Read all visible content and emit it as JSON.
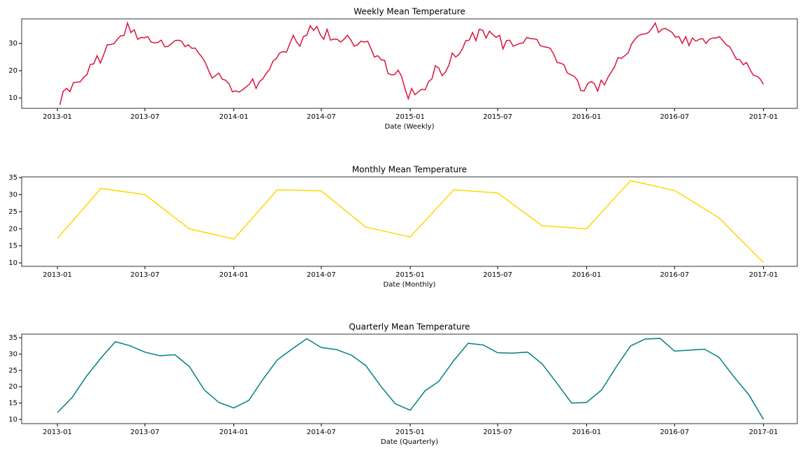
{
  "chart_data": [
    {
      "type": "line",
      "title": "Weekly Mean Temperature",
      "xlabel": "Date (Weekly)",
      "color": "#dc143c",
      "xlim": [
        "2012-10-19",
        "2017-03-12"
      ],
      "ylim": [
        6.2,
        39.0
      ],
      "xticks": [
        "2013-01",
        "2013-07",
        "2014-01",
        "2014-07",
        "2015-01",
        "2015-07",
        "2016-01",
        "2016-07",
        "2017-01"
      ],
      "yticks": [
        10,
        20,
        30
      ],
      "x": [
        "2013-01-06",
        "2013-01-13",
        "2013-01-20",
        "2013-01-27",
        "2013-02-03",
        "2013-02-10",
        "2013-02-17",
        "2013-02-24",
        "2013-03-03",
        "2013-03-10",
        "2013-03-17",
        "2013-03-24",
        "2013-03-31",
        "2013-04-07",
        "2013-04-14",
        "2013-04-21",
        "2013-04-28",
        "2013-05-05",
        "2013-05-12",
        "2013-05-19",
        "2013-05-26",
        "2013-06-02",
        "2013-06-09",
        "2013-06-16",
        "2013-06-23",
        "2013-06-30",
        "2013-07-07",
        "2013-07-14",
        "2013-07-21",
        "2013-07-28",
        "2013-08-04",
        "2013-08-11",
        "2013-08-18",
        "2013-08-25",
        "2013-09-01",
        "2013-09-08",
        "2013-09-15",
        "2013-09-22",
        "2013-09-29",
        "2013-10-06",
        "2013-10-13",
        "2013-10-20",
        "2013-10-27",
        "2013-11-03",
        "2013-11-10",
        "2013-11-17",
        "2013-11-24",
        "2013-12-01",
        "2013-12-08",
        "2013-12-15",
        "2013-12-22",
        "2013-12-29",
        "2014-01-05",
        "2014-01-12",
        "2014-01-19",
        "2014-01-26",
        "2014-02-02",
        "2014-02-09",
        "2014-02-16",
        "2014-02-23",
        "2014-03-02",
        "2014-03-09",
        "2014-03-16",
        "2014-03-23",
        "2014-03-30",
        "2014-04-06",
        "2014-04-13",
        "2014-04-20",
        "2014-04-27",
        "2014-05-04",
        "2014-05-11",
        "2014-05-18",
        "2014-05-25",
        "2014-06-01",
        "2014-06-08",
        "2014-06-15",
        "2014-06-22",
        "2014-06-29",
        "2014-07-06",
        "2014-07-13",
        "2014-07-20",
        "2014-07-27",
        "2014-08-03",
        "2014-08-10",
        "2014-08-17",
        "2014-08-24",
        "2014-08-31",
        "2014-09-07",
        "2014-09-14",
        "2014-09-21",
        "2014-09-28",
        "2014-10-05",
        "2014-10-12",
        "2014-10-19",
        "2014-10-26",
        "2014-11-02",
        "2014-11-09",
        "2014-11-16",
        "2014-11-23",
        "2014-11-30",
        "2014-12-07",
        "2014-12-14",
        "2014-12-21",
        "2014-12-28",
        "2015-01-04",
        "2015-01-11",
        "2015-01-18",
        "2015-01-25",
        "2015-02-01",
        "2015-02-08",
        "2015-02-15",
        "2015-02-22",
        "2015-03-01",
        "2015-03-08",
        "2015-03-15",
        "2015-03-22",
        "2015-03-29",
        "2015-04-05",
        "2015-04-12",
        "2015-04-19",
        "2015-04-26",
        "2015-05-03",
        "2015-05-10",
        "2015-05-17",
        "2015-05-24",
        "2015-05-31",
        "2015-06-07",
        "2015-06-14",
        "2015-06-21",
        "2015-06-28",
        "2015-07-05",
        "2015-07-12",
        "2015-07-19",
        "2015-07-26",
        "2015-08-02",
        "2015-08-09",
        "2015-08-16",
        "2015-08-23",
        "2015-08-30",
        "2015-09-06",
        "2015-09-13",
        "2015-09-20",
        "2015-09-27",
        "2015-10-04",
        "2015-10-11",
        "2015-10-18",
        "2015-10-25",
        "2015-11-01",
        "2015-11-08",
        "2015-11-15",
        "2015-11-22",
        "2015-11-29",
        "2015-12-06",
        "2015-12-13",
        "2015-12-20",
        "2015-12-27",
        "2016-01-03",
        "2016-01-10",
        "2016-01-17",
        "2016-01-24",
        "2016-01-31",
        "2016-02-07",
        "2016-02-14",
        "2016-02-21",
        "2016-02-28",
        "2016-03-06",
        "2016-03-13",
        "2016-03-20",
        "2016-03-27",
        "2016-04-03",
        "2016-04-10",
        "2016-04-17",
        "2016-04-24",
        "2016-05-01",
        "2016-05-08",
        "2016-05-15",
        "2016-05-22",
        "2016-05-29",
        "2016-06-05",
        "2016-06-12",
        "2016-06-19",
        "2016-06-26",
        "2016-07-03",
        "2016-07-10",
        "2016-07-17",
        "2016-07-24",
        "2016-07-31",
        "2016-08-07",
        "2016-08-14",
        "2016-08-21",
        "2016-08-28",
        "2016-09-04",
        "2016-09-11",
        "2016-09-18",
        "2016-09-25",
        "2016-10-02",
        "2016-10-09",
        "2016-10-16",
        "2016-10-23",
        "2016-10-30",
        "2016-11-06",
        "2016-11-13",
        "2016-11-20",
        "2016-11-27",
        "2016-12-04",
        "2016-12-11",
        "2016-12-18",
        "2016-12-25",
        "2017-01-01"
      ],
      "values": [
        7.5,
        12.5,
        13.5,
        12.3,
        15.6,
        15.8,
        15.9,
        17.5,
        18.5,
        22.3,
        22.5,
        25.5,
        22.8,
        26,
        29.5,
        29.6,
        29.9,
        31.5,
        32.8,
        32.9,
        37.5,
        34,
        35,
        31.5,
        32.2,
        32.1,
        32.5,
        30.5,
        30.2,
        30.4,
        31.2,
        28.8,
        28.9,
        29.9,
        31,
        31.2,
        30.8,
        28.8,
        29.5,
        28.2,
        28.3,
        26.5,
        25,
        23,
        20,
        17.3,
        18.2,
        19.1,
        16.9,
        16.5,
        15.2,
        12.3,
        12.6,
        12.2,
        13,
        14,
        15,
        17,
        13.5,
        16,
        17,
        19,
        20.5,
        23.5,
        24.5,
        26.5,
        27,
        26.8,
        30,
        33,
        30.5,
        29,
        32.5,
        33,
        36.5,
        34.8,
        36.2,
        33.2,
        31.5,
        35.2,
        31.2,
        31.6,
        31.5,
        30.5,
        31.5,
        33,
        31.3,
        29,
        29.5,
        30.8,
        30.5,
        30.8,
        28,
        25,
        25.5,
        24,
        23.8,
        19,
        18.5,
        18.6,
        20.2,
        18,
        13.5,
        9.7,
        13.5,
        11.2,
        12.3,
        13.2,
        13,
        16,
        17,
        21.8,
        21,
        18.2,
        19.5,
        22,
        26.5,
        25,
        26,
        28,
        31,
        31.2,
        34,
        31,
        35.2,
        34.8,
        32,
        34.5,
        33.2,
        32.2,
        33,
        28,
        31,
        31.2,
        29,
        29.5,
        30,
        30.2,
        32.2,
        31.8,
        31.7,
        31.5,
        29.2,
        28.8,
        28.6,
        28.2,
        26,
        23,
        22.8,
        22.2,
        19.2,
        18.5,
        18,
        16.5,
        12.7,
        12.6,
        15.2,
        16,
        15.3,
        12.5,
        16.5,
        14.8,
        17.5,
        19.5,
        21.5,
        24.8,
        24.5,
        25.5,
        26.5,
        29.8,
        31.5,
        32.8,
        33.3,
        33.5,
        34,
        35.5,
        37.5,
        34,
        35.2,
        35.5,
        34.8,
        34,
        32.3,
        32.5,
        30,
        32.5,
        29.2,
        32,
        30.8,
        31.5,
        31.8,
        30,
        31.5,
        32,
        32,
        32.5,
        31,
        29.5,
        28.8,
        26.5,
        24.2,
        24,
        22.2,
        23,
        20.5,
        18.3,
        18,
        17,
        15
      ]
    },
    {
      "type": "line",
      "title": "Monthly Mean Temperature",
      "xlabel": "Date (Monthly)",
      "color": "#ffd700",
      "xlim": [
        "2012-10-19",
        "2017-03-12"
      ],
      "ylim": [
        9.0,
        35.2
      ],
      "xticks": [
        "2013-01",
        "2013-07",
        "2014-01",
        "2014-07",
        "2015-01",
        "2015-07",
        "2016-01",
        "2016-07",
        "2017-01"
      ],
      "yticks": [
        10,
        15,
        20,
        25,
        30,
        35
      ],
      "x": [
        "2013-01",
        "2013-04",
        "2013-07",
        "2013-10",
        "2014-01",
        "2014-04",
        "2014-07",
        "2014-10",
        "2015-01",
        "2015-04",
        "2015-07",
        "2015-10",
        "2016-01",
        "2016-04",
        "2016-07",
        "2016-10",
        "2017-01"
      ],
      "values": [
        17.2,
        31.8,
        30,
        20,
        17,
        31.4,
        31.1,
        20.5,
        17.6,
        31.4,
        30.5,
        20.9,
        20,
        34.1,
        31.2,
        23.2,
        10.1
      ]
    },
    {
      "type": "line",
      "title": "Quarterly Mean Temperature",
      "xlabel": "Date (Quarterly)",
      "color": "#008080",
      "xlim": [
        "2012-10-19",
        "2017-03-12"
      ],
      "ylim": [
        8.7,
        36.1
      ],
      "xticks": [
        "2013-01",
        "2013-07",
        "2014-01",
        "2014-07",
        "2015-01",
        "2015-07",
        "2016-01",
        "2016-07",
        "2017-01"
      ],
      "yticks": [
        10,
        15,
        20,
        25,
        30,
        35
      ],
      "x": [
        "2013-01",
        "2013-02",
        "2013-03",
        "2013-04",
        "2013-05",
        "2013-06",
        "2013-07",
        "2013-08",
        "2013-09",
        "2013-10",
        "2013-11",
        "2013-12",
        "2014-01",
        "2014-02",
        "2014-03",
        "2014-04",
        "2014-05",
        "2014-06",
        "2014-07",
        "2014-08",
        "2014-09",
        "2014-10",
        "2014-11",
        "2014-12",
        "2015-01",
        "2015-02",
        "2015-03",
        "2015-04",
        "2015-05",
        "2015-06",
        "2015-07",
        "2015-08",
        "2015-09",
        "2015-10",
        "2015-11",
        "2015-12",
        "2016-01",
        "2016-02",
        "2016-03",
        "2016-04",
        "2016-05",
        "2016-06",
        "2016-07",
        "2016-08",
        "2016-09",
        "2016-10",
        "2016-11",
        "2016-12",
        "2017-01"
      ],
      "values": [
        12.1,
        16.8,
        23,
        28.8,
        33.8,
        32.5,
        30.6,
        29.5,
        29.8,
        26.2,
        19,
        15.2,
        13.5,
        15.8,
        22,
        28.2,
        31.5,
        34.7,
        32,
        31.4,
        29.7,
        26.5,
        20.2,
        14.8,
        12.8,
        18.8,
        21.6,
        28,
        33.3,
        32.8,
        30.4,
        30.3,
        30.6,
        27,
        21,
        15,
        15.2,
        19,
        25.8,
        32.5,
        34.6,
        34.8,
        30.9,
        31.2,
        31.5,
        29,
        23,
        17.7,
        10
      ]
    }
  ]
}
